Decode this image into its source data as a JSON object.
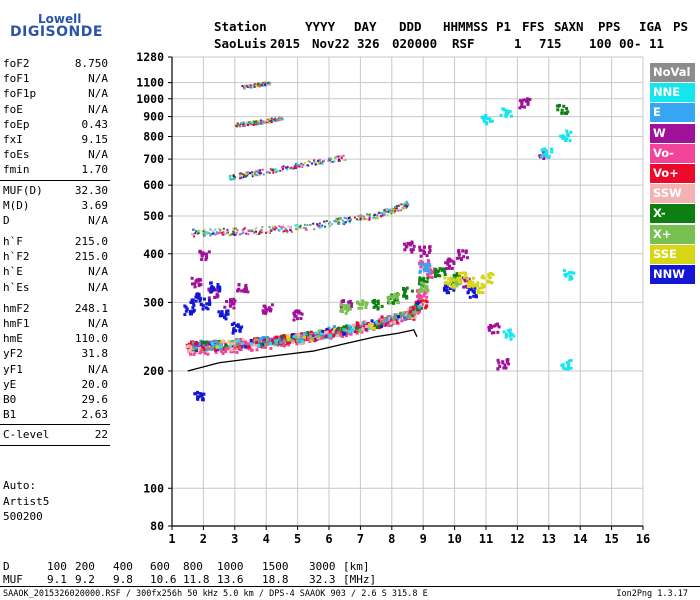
{
  "logo": {
    "line1": "Lowell",
    "line2": "DIGISONDE"
  },
  "header": {
    "labels": [
      "Station",
      "YYYY",
      "DAY",
      "DDD",
      "HHMMSS",
      "P1",
      "FFS",
      "S",
      "AXN",
      "PPS",
      "IGA",
      "PS"
    ],
    "values": [
      "SaoLuis",
      "2015",
      "Nov22",
      "326",
      "020000",
      "RSF",
      "1",
      "715",
      "100",
      "00-",
      "11"
    ]
  },
  "parameters": [
    {
      "name": "foF2",
      "value": "8.750"
    },
    {
      "name": "foF1",
      "value": "N/A"
    },
    {
      "name": "foF1p",
      "value": "N/A"
    },
    {
      "name": "foE",
      "value": "N/A"
    },
    {
      "name": "foEp",
      "value": "0.43"
    },
    {
      "name": "fxI",
      "value": "9.15"
    },
    {
      "name": "foEs",
      "value": "N/A"
    },
    {
      "name": "fmin",
      "value": "1.70"
    },
    {
      "name": "MUF(D)",
      "value": "32.30"
    },
    {
      "name": "M(D)",
      "value": "3.69"
    },
    {
      "name": "D",
      "value": "N/A"
    },
    {
      "name": "h`F",
      "value": "215.0"
    },
    {
      "name": "h`F2",
      "value": "215.0"
    },
    {
      "name": "h`E",
      "value": "N/A"
    },
    {
      "name": "h`Es",
      "value": "N/A"
    },
    {
      "name": "hmF2",
      "value": "248.1"
    },
    {
      "name": "hmF1",
      "value": "N/A"
    },
    {
      "name": "hmE",
      "value": "110.0"
    },
    {
      "name": "yF2",
      "value": "31.8"
    },
    {
      "name": "yF1",
      "value": "N/A"
    },
    {
      "name": "yE",
      "value": "20.0"
    },
    {
      "name": "B0",
      "value": "29.6"
    },
    {
      "name": "B1",
      "value": "2.63"
    },
    {
      "name": "C-level",
      "value": "22"
    }
  ],
  "autoscale": {
    "line1": "Auto:",
    "line2": "Artist5",
    "line3": "500200"
  },
  "legend": [
    {
      "name": "NoVal",
      "color": "#8c8c8c"
    },
    {
      "name": "NNE",
      "color": "#15e6ee"
    },
    {
      "name": "E",
      "color": "#36a6f2"
    },
    {
      "name": "W",
      "color": "#a0119a"
    },
    {
      "name": "Vo-",
      "color": "#f4449a"
    },
    {
      "name": "Vo+",
      "color": "#ec0a2a"
    },
    {
      "name": "SSW",
      "color": "#f4b2b2"
    },
    {
      "name": "X-",
      "color": "#0c7e12"
    },
    {
      "name": "X+",
      "color": "#78c052"
    },
    {
      "name": "SSE",
      "color": "#d6d616"
    },
    {
      "name": "NNW",
      "color": "#1416d6"
    }
  ],
  "mufTable": {
    "dLabel": "D",
    "mufLabel": "MUF",
    "distances": [
      "100",
      "200",
      "400",
      "600",
      "800",
      "1000",
      "1500",
      "3000"
    ],
    "dUnit": "[km]",
    "mufs": [
      "9.1",
      "9.2",
      "9.8",
      "10.6",
      "11.8",
      "13.6",
      "18.8",
      "32.3"
    ],
    "mufUnit": "[MHz]"
  },
  "footer": {
    "info": "SAAOK_2015326020000.RSF / 300fx256h 50 kHz 5.0 km / DPS-4 SAAOK 903 / 2.6 S 315.8 E",
    "version": "Ion2Png 1.3.17"
  },
  "chart_data": {
    "type": "scatter",
    "xlabel": "",
    "ylabel": "",
    "xlim": [
      1,
      16
    ],
    "ylim": [
      80,
      1280
    ],
    "yscale": "log",
    "xticks": [
      "1",
      "2",
      "3",
      "4",
      "5",
      "6",
      "7",
      "8",
      "9",
      "10",
      "11",
      "12",
      "13",
      "14",
      "15",
      "16"
    ],
    "yticks": [
      "80",
      "100",
      "200",
      "300",
      "400",
      "500",
      "600",
      "700",
      "800",
      "900",
      "1000",
      "1100",
      "1280"
    ],
    "grid": true,
    "series": [
      {
        "name": "Vo-",
        "color": "#f4449a",
        "points": [
          [
            1.6,
            229
          ],
          [
            2.0,
            227
          ],
          [
            2.5,
            230
          ],
          [
            3.0,
            232
          ],
          [
            3.5,
            234
          ],
          [
            4.0,
            237
          ],
          [
            4.5,
            240
          ],
          [
            5.0,
            243
          ],
          [
            5.5,
            247
          ],
          [
            6.0,
            251
          ],
          [
            6.5,
            255
          ],
          [
            7.0,
            260
          ],
          [
            7.5,
            266
          ],
          [
            8.0,
            272
          ],
          [
            8.4,
            278
          ],
          [
            8.7,
            290
          ],
          [
            8.9,
            320
          ],
          [
            9.0,
            380
          ],
          [
            9.2,
            360
          ]
        ]
      },
      {
        "name": "Vo+",
        "color": "#ec0a2a",
        "points": [
          [
            1.6,
            233
          ],
          [
            2.2,
            234
          ],
          [
            3.0,
            236
          ],
          [
            3.8,
            239
          ],
          [
            4.6,
            243
          ],
          [
            5.4,
            248
          ],
          [
            6.2,
            254
          ],
          [
            7.0,
            262
          ],
          [
            7.8,
            270
          ],
          [
            8.5,
            282
          ],
          [
            8.9,
            300
          ]
        ]
      },
      {
        "name": "W",
        "color": "#a0119a",
        "points": [
          [
            1.7,
            340
          ],
          [
            2.0,
            400
          ],
          [
            2.3,
            320
          ],
          [
            2.8,
            300
          ],
          [
            3.2,
            330
          ],
          [
            4.0,
            290
          ],
          [
            5.0,
            280
          ],
          [
            6.5,
            300
          ],
          [
            8.5,
            420
          ],
          [
            9.0,
            410
          ],
          [
            9.8,
            380
          ],
          [
            10.2,
            400
          ],
          [
            10.3,
            340
          ],
          [
            12.2,
            985
          ],
          [
            12.8,
            730
          ],
          [
            11.2,
            260
          ],
          [
            11.5,
            210
          ]
        ]
      },
      {
        "name": "NNW",
        "color": "#1416d6",
        "points": [
          [
            1.5,
            290
          ],
          [
            1.7,
            310
          ],
          [
            1.8,
            175
          ],
          [
            2.0,
            300
          ],
          [
            2.3,
            330
          ],
          [
            2.6,
            280
          ],
          [
            3.0,
            260
          ],
          [
            9.8,
            330
          ],
          [
            10.5,
            320
          ]
        ]
      },
      {
        "name": "X-",
        "color": "#0c7e12",
        "points": [
          [
            7.5,
            300
          ],
          [
            8.0,
            310
          ],
          [
            8.5,
            320
          ],
          [
            9.0,
            340
          ],
          [
            9.5,
            360
          ],
          [
            10.0,
            350
          ],
          [
            13.4,
            950
          ]
        ]
      },
      {
        "name": "X+",
        "color": "#78c052",
        "points": [
          [
            6.5,
            290
          ],
          [
            7.0,
            300
          ],
          [
            8.0,
            310
          ],
          [
            9.0,
            330
          ],
          [
            10.0,
            340
          ]
        ]
      },
      {
        "name": "SSE",
        "color": "#d6d616",
        "points": [
          [
            9.8,
            340
          ],
          [
            10.2,
            350
          ],
          [
            10.5,
            340
          ],
          [
            10.8,
            330
          ],
          [
            11.0,
            350
          ]
        ]
      },
      {
        "name": "NNE",
        "color": "#15e6ee",
        "points": [
          [
            11.0,
            895
          ],
          [
            11.6,
            930
          ],
          [
            12.9,
            735
          ],
          [
            13.5,
            810
          ],
          [
            13.6,
            355
          ],
          [
            13.5,
            210
          ],
          [
            11.7,
            250
          ]
        ]
      },
      {
        "name": "E",
        "color": "#36a6f2",
        "points": [
          [
            2.0,
            235
          ],
          [
            4.0,
            240
          ],
          [
            6.0,
            255
          ],
          [
            8.0,
            275
          ],
          [
            9.0,
            370
          ]
        ]
      },
      {
        "name": "SSW",
        "color": "#f4b2b2",
        "points": [
          [
            1.6,
            231
          ],
          [
            3.0,
            234
          ],
          [
            5.0,
            244
          ],
          [
            7.0,
            263
          ],
          [
            8.6,
            285
          ]
        ]
      }
    ],
    "multiples": [
      {
        "name": "2nd hop",
        "points": [
          [
            1.6,
            455
          ],
          [
            2.5,
            458
          ],
          [
            3.5,
            460
          ],
          [
            4.5,
            465
          ],
          [
            5.5,
            475
          ],
          [
            6.5,
            490
          ],
          [
            7.5,
            505
          ],
          [
            8.0,
            520
          ],
          [
            8.5,
            540
          ]
        ]
      },
      {
        "name": "3rd hop",
        "points": [
          [
            2.8,
            630
          ],
          [
            3.5,
            645
          ],
          [
            4.5,
            665
          ],
          [
            5.5,
            690
          ],
          [
            6.5,
            710
          ]
        ]
      },
      {
        "name": "4th hop",
        "points": [
          [
            3.0,
            860
          ],
          [
            3.5,
            870
          ],
          [
            4.0,
            880
          ],
          [
            4.5,
            900
          ]
        ]
      },
      {
        "name": "5th hop",
        "points": [
          [
            3.2,
            1075
          ],
          [
            3.7,
            1090
          ],
          [
            4.1,
            1100
          ]
        ]
      }
    ],
    "fitted_trace": {
      "name": "trace",
      "points": [
        [
          1.5,
          200
        ],
        [
          2.5,
          210
        ],
        [
          3.5,
          215
        ],
        [
          4.5,
          220
        ],
        [
          5.5,
          225
        ],
        [
          6.5,
          235
        ],
        [
          7.5,
          245
        ],
        [
          8.2,
          250
        ],
        [
          8.7,
          255
        ],
        [
          8.8,
          245
        ]
      ]
    }
  }
}
